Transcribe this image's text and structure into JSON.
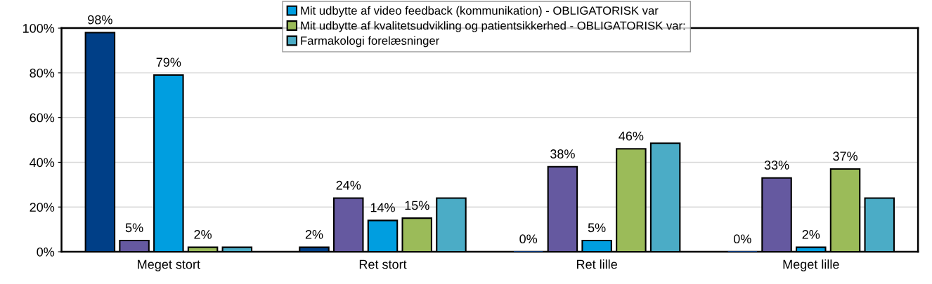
{
  "chart_data": {
    "type": "bar",
    "categories": [
      "Meget stort",
      "Ret stort",
      "Ret lille",
      "Meget lille"
    ],
    "series": [
      {
        "color": "#003f87",
        "values": [
          98,
          2,
          0,
          0
        ],
        "value_labels": [
          "98%",
          "2%",
          "0%",
          "0%"
        ]
      },
      {
        "color": "#6559a0",
        "values": [
          5,
          24,
          38,
          33
        ],
        "value_labels": [
          "5%",
          "24%",
          "38%",
          "33%"
        ]
      },
      {
        "name": "Mit udbytte af video feedback (kommunikation) - OBLIGATORISK var",
        "color": "#009ee0",
        "values": [
          79,
          14,
          5,
          2
        ],
        "value_labels": [
          "79%",
          "14%",
          "5%",
          "2%"
        ]
      },
      {
        "name": "Mit udbytte af kvalitetsudvikling og patientsikkerhed - OBLIGATORISK var:",
        "color": "#9bbb59",
        "values": [
          2,
          15,
          46,
          37
        ],
        "value_labels": [
          "2%",
          "15%",
          "46%",
          "37%"
        ]
      },
      {
        "name": "Farmakologi forelæsninger",
        "color": "#4bacc6",
        "values": [
          2,
          24,
          48.5,
          24
        ]
      }
    ],
    "ylim": [
      0,
      100
    ],
    "yticks": [
      {
        "value": 0,
        "label": "0%"
      },
      {
        "value": 20,
        "label": "20%"
      },
      {
        "value": 40,
        "label": "40%"
      },
      {
        "value": 60,
        "label": "60%"
      },
      {
        "value": 80,
        "label": "80%"
      },
      {
        "value": 100,
        "label": "100%"
      }
    ],
    "grid": "y",
    "legend": "top"
  }
}
